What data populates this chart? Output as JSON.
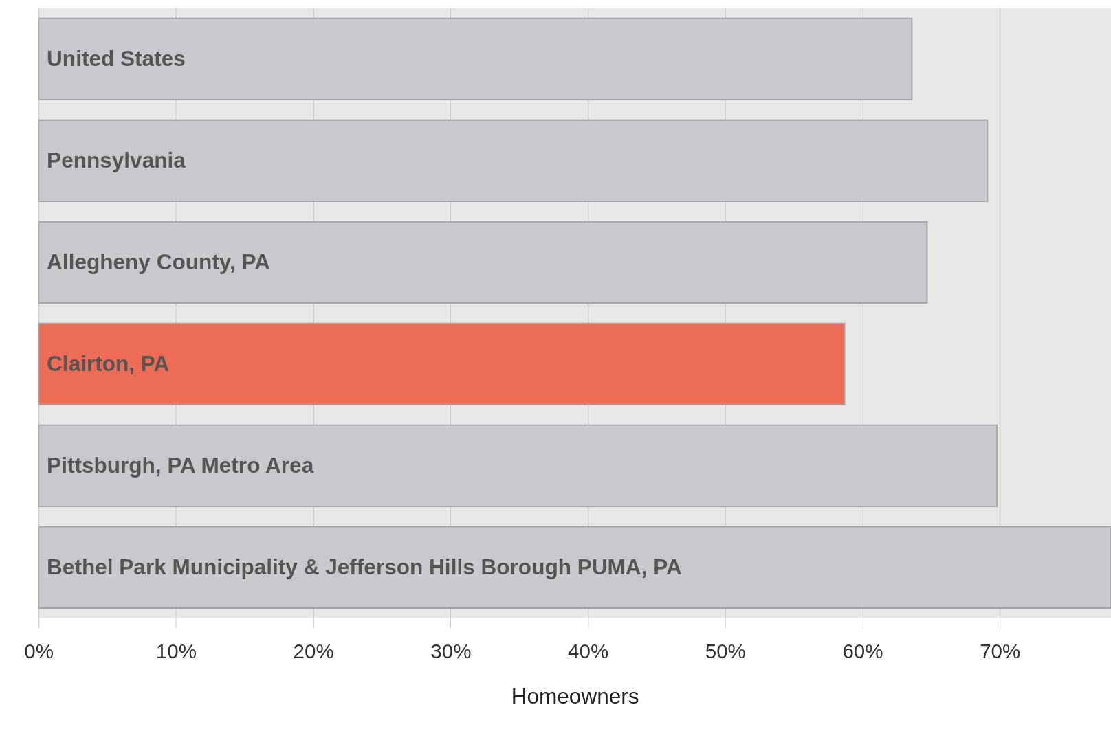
{
  "chart_data": {
    "type": "bar",
    "orientation": "horizontal",
    "xlabel": "Homeowners",
    "categories": [
      "United States",
      "Pennsylvania",
      "Allegheny County, PA",
      "Clairton, PA",
      "Pittsburgh, PA Metro Area",
      "Bethel Park Municipality & Jefferson Hills Borough PUMA, PA"
    ],
    "values": [
      63.6,
      69.1,
      64.7,
      58.7,
      69.8,
      78.1
    ],
    "colors": [
      "#c8c9cd",
      "#c8c9cd",
      "#c8c9cd",
      "#ec6c55",
      "#c8c9cd",
      "#c8c9cd"
    ],
    "xlim": [
      0,
      78.1
    ],
    "xticks": [
      {
        "value": 0,
        "label": "0%"
      },
      {
        "value": 10,
        "label": "10%"
      },
      {
        "value": 20,
        "label": "20%"
      },
      {
        "value": 30,
        "label": "30%"
      },
      {
        "value": 40,
        "label": "40%"
      },
      {
        "value": 50,
        "label": "50%"
      },
      {
        "value": 60,
        "label": "60%"
      },
      {
        "value": 70,
        "label": "70%"
      }
    ],
    "grid": "x"
  }
}
